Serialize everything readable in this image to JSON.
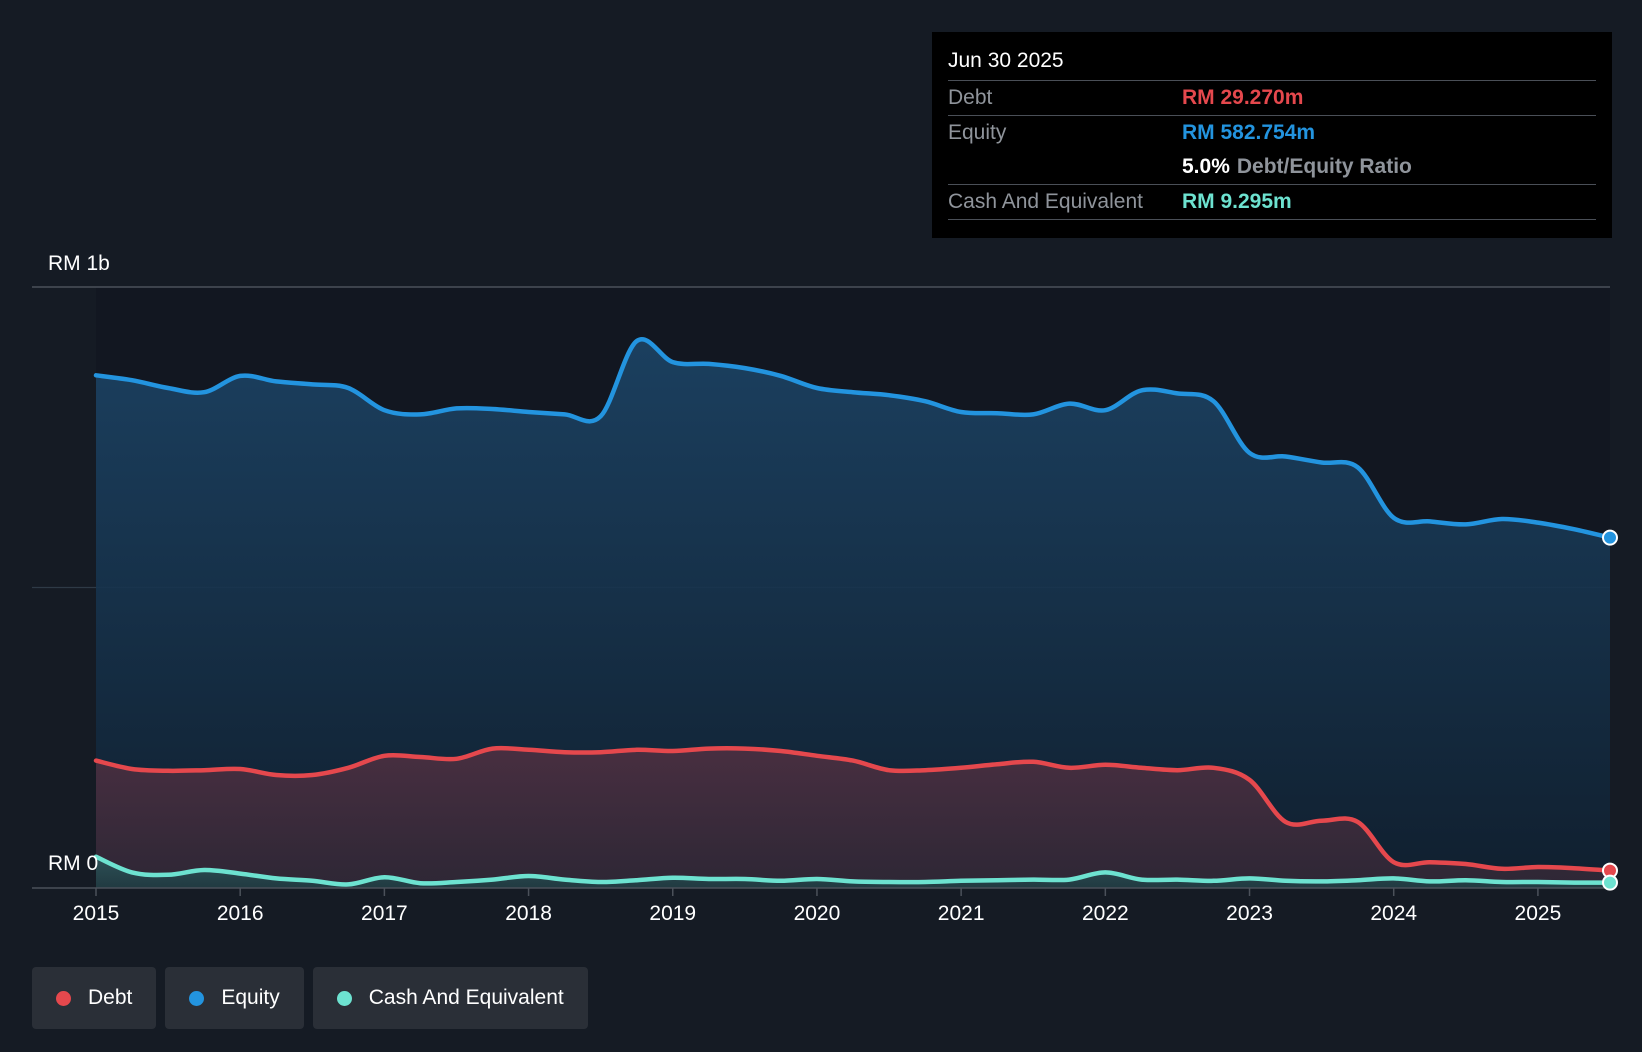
{
  "colors": {
    "debt": "#e5484d",
    "equity": "#2394df",
    "cash": "#6de2d0",
    "background": "#151b24",
    "plot_bg": "#121721"
  },
  "tooltip": {
    "date": "Jun 30 2025",
    "debt_label": "Debt",
    "debt_value": "RM 29.270m",
    "equity_label": "Equity",
    "equity_value": "RM 582.754m",
    "ratio_value": "5.0%",
    "ratio_label": "Debt/Equity Ratio",
    "cash_label": "Cash And Equivalent",
    "cash_value": "RM 9.295m"
  },
  "legend": {
    "debt": "Debt",
    "equity": "Equity",
    "cash": "Cash And Equivalent"
  },
  "chart_data": {
    "type": "area",
    "title": "",
    "xlabel": "",
    "ylabel": "",
    "xlim": [
      2015.0,
      2025.5
    ],
    "ylim": [
      0,
      1000
    ],
    "y_top_label": "RM 1b",
    "y_bottom_label": "RM 0",
    "x_ticks": [
      2015,
      2016,
      2017,
      2018,
      2019,
      2020,
      2021,
      2022,
      2023,
      2024,
      2025
    ],
    "x_tick_labels": [
      "2015",
      "2016",
      "2017",
      "2018",
      "2019",
      "2020",
      "2021",
      "2022",
      "2023",
      "2024",
      "2025"
    ],
    "grid": "horizontal",
    "series": [
      {
        "name": "Equity",
        "key": "equity",
        "x": [
          2015.0,
          2015.25,
          2015.5,
          2015.75,
          2016.0,
          2016.25,
          2016.5,
          2016.75,
          2017.0,
          2017.25,
          2017.5,
          2017.75,
          2018.0,
          2018.25,
          2018.5,
          2018.75,
          2019.0,
          2019.25,
          2019.5,
          2019.75,
          2020.0,
          2020.25,
          2020.5,
          2020.75,
          2021.0,
          2021.25,
          2021.5,
          2021.75,
          2022.0,
          2022.25,
          2022.5,
          2022.75,
          2023.0,
          2023.25,
          2023.5,
          2023.75,
          2024.0,
          2024.25,
          2024.5,
          2024.75,
          2025.0,
          2025.25,
          2025.5
        ],
        "values": [
          853,
          845,
          832,
          825,
          852,
          843,
          838,
          832,
          795,
          788,
          798,
          797,
          792,
          788,
          785,
          910,
          875,
          872,
          865,
          852,
          832,
          825,
          820,
          810,
          792,
          790,
          788,
          806,
          795,
          828,
          823,
          810,
          724,
          718,
          708,
          700,
          616,
          610,
          605,
          614,
          608,
          597,
          583
        ]
      },
      {
        "name": "Debt",
        "key": "debt",
        "x": [
          2015.0,
          2015.25,
          2015.5,
          2015.75,
          2016.0,
          2016.25,
          2016.5,
          2016.75,
          2017.0,
          2017.25,
          2017.5,
          2017.75,
          2018.0,
          2018.25,
          2018.5,
          2018.75,
          2019.0,
          2019.25,
          2019.5,
          2019.75,
          2020.0,
          2020.25,
          2020.5,
          2020.75,
          2021.0,
          2021.25,
          2021.5,
          2021.75,
          2022.0,
          2022.25,
          2022.5,
          2022.75,
          2023.0,
          2023.25,
          2023.5,
          2023.75,
          2024.0,
          2024.25,
          2024.5,
          2024.75,
          2025.0,
          2025.25,
          2025.5
        ],
        "values": [
          212,
          198,
          195,
          196,
          198,
          188,
          188,
          200,
          220,
          218,
          215,
          232,
          230,
          226,
          226,
          230,
          228,
          232,
          232,
          228,
          220,
          212,
          196,
          196,
          200,
          206,
          210,
          200,
          205,
          200,
          196,
          200,
          180,
          110,
          112,
          110,
          43,
          43,
          40,
          32,
          35,
          33,
          29
        ]
      },
      {
        "name": "Cash And Equivalent",
        "key": "cash",
        "x": [
          2015.0,
          2015.25,
          2015.5,
          2015.75,
          2016.0,
          2016.25,
          2016.5,
          2016.75,
          2017.0,
          2017.25,
          2017.5,
          2017.75,
          2018.0,
          2018.25,
          2018.5,
          2018.75,
          2019.0,
          2019.25,
          2019.5,
          2019.75,
          2020.0,
          2020.25,
          2020.5,
          2020.75,
          2021.0,
          2021.25,
          2021.5,
          2021.75,
          2022.0,
          2022.25,
          2022.5,
          2022.75,
          2023.0,
          2023.25,
          2023.5,
          2023.75,
          2024.0,
          2024.25,
          2024.5,
          2024.75,
          2025.0,
          2025.25,
          2025.5
        ],
        "values": [
          52,
          26,
          22,
          30,
          24,
          16,
          12,
          6,
          18,
          8,
          10,
          14,
          20,
          14,
          10,
          13,
          17,
          15,
          15,
          12,
          15,
          11,
          10,
          10,
          12,
          13,
          14,
          14,
          26,
          14,
          14,
          12,
          16,
          12,
          11,
          13,
          16,
          11,
          13,
          10,
          10,
          9,
          9
        ]
      }
    ]
  }
}
